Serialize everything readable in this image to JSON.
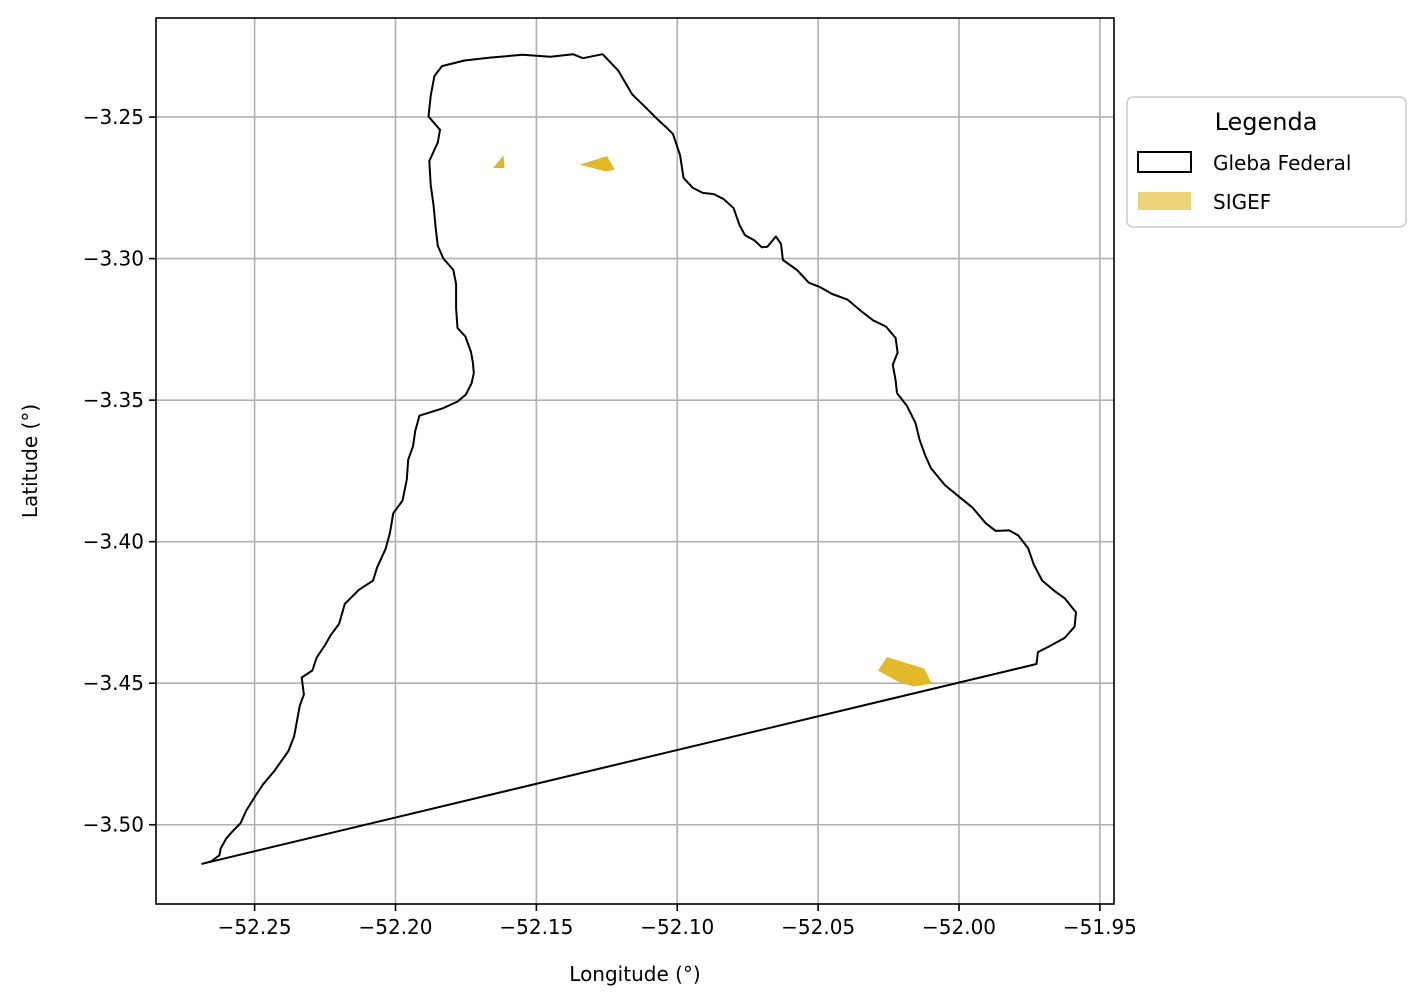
{
  "chart_data": {
    "type": "map",
    "title": "",
    "xlabel": "Longitude (°)",
    "ylabel": "Latitude (°)",
    "xlim": [
      -52.285,
      -51.945
    ],
    "ylim": [
      -3.528,
      -3.215
    ],
    "xticks": [
      -52.25,
      -52.2,
      -52.15,
      -52.1,
      -52.05,
      -52.0,
      -51.95
    ],
    "xtick_labels": [
      "−52.25",
      "−52.20",
      "−52.15",
      "−52.10",
      "−52.05",
      "−52.00",
      "−51.95"
    ],
    "yticks": [
      -3.25,
      -3.3,
      -3.35,
      -3.4,
      -3.45,
      -3.5
    ],
    "ytick_labels": [
      "−3.25",
      "−3.30",
      "−3.35",
      "−3.40",
      "−3.45",
      "−3.50"
    ],
    "grid": true,
    "legend": {
      "title": "Legenda",
      "placement": "outside-right-top",
      "entries": [
        {
          "label": "Gleba Federal",
          "style": "outline",
          "color": "#000000"
        },
        {
          "label": "SIGEF",
          "style": "fill",
          "color": "#dfb520"
        }
      ]
    },
    "series": [
      {
        "name": "Gleba Federal",
        "kind": "polygon-outline",
        "color": "#000000",
        "coords": [
          [
            -52.2686,
            -3.5138
          ],
          [
            -52.2655,
            -3.513
          ],
          [
            -52.2625,
            -3.5108
          ],
          [
            -52.262,
            -3.5083
          ],
          [
            -52.26,
            -3.5048
          ],
          [
            -52.258,
            -3.5025
          ],
          [
            -52.255,
            -3.4995
          ],
          [
            -52.253,
            -3.495
          ],
          [
            -52.2495,
            -3.4895
          ],
          [
            -52.247,
            -3.4857
          ],
          [
            -52.243,
            -3.481
          ],
          [
            -52.238,
            -3.474
          ],
          [
            -52.236,
            -3.4688
          ],
          [
            -52.235,
            -3.4635
          ],
          [
            -52.234,
            -3.458
          ],
          [
            -52.2325,
            -3.454
          ],
          [
            -52.2333,
            -3.448
          ],
          [
            -52.2295,
            -3.4455
          ],
          [
            -52.228,
            -3.441
          ],
          [
            -52.225,
            -3.4365
          ],
          [
            -52.223,
            -3.433
          ],
          [
            -52.22,
            -3.429
          ],
          [
            -52.218,
            -3.422
          ],
          [
            -52.213,
            -3.417
          ],
          [
            -52.208,
            -3.4138
          ],
          [
            -52.2065,
            -3.409
          ],
          [
            -52.2035,
            -3.4025
          ],
          [
            -52.202,
            -3.397
          ],
          [
            -52.2008,
            -3.39
          ],
          [
            -52.1975,
            -3.3855
          ],
          [
            -52.196,
            -3.378
          ],
          [
            -52.1955,
            -3.371
          ],
          [
            -52.1938,
            -3.3663
          ],
          [
            -52.193,
            -3.361
          ],
          [
            -52.1915,
            -3.3555
          ],
          [
            -52.1835,
            -3.353
          ],
          [
            -52.178,
            -3.3505
          ],
          [
            -52.175,
            -3.348
          ],
          [
            -52.173,
            -3.344
          ],
          [
            -52.1722,
            -3.3405
          ],
          [
            -52.1725,
            -3.337
          ],
          [
            -52.1732,
            -3.333
          ],
          [
            -52.1752,
            -3.3275
          ],
          [
            -52.178,
            -3.3245
          ],
          [
            -52.1785,
            -3.3175
          ],
          [
            -52.1785,
            -3.309
          ],
          [
            -52.1795,
            -3.304
          ],
          [
            -52.183,
            -3.3
          ],
          [
            -52.185,
            -3.2955
          ],
          [
            -52.1858,
            -3.2885
          ],
          [
            -52.1865,
            -3.281
          ],
          [
            -52.1875,
            -3.274
          ],
          [
            -52.188,
            -3.2655
          ],
          [
            -52.185,
            -3.259
          ],
          [
            -52.1842,
            -3.2545
          ],
          [
            -52.1883,
            -3.2498
          ],
          [
            -52.1875,
            -3.2425
          ],
          [
            -52.1862,
            -3.2355
          ],
          [
            -52.1835,
            -3.232
          ],
          [
            -52.1755,
            -3.23
          ],
          [
            -52.1665,
            -3.229
          ],
          [
            -52.155,
            -3.228
          ],
          [
            -52.145,
            -3.2287
          ],
          [
            -52.137,
            -3.2278
          ],
          [
            -52.1335,
            -3.2292
          ],
          [
            -52.1265,
            -3.2278
          ],
          [
            -52.121,
            -3.2335
          ],
          [
            -52.116,
            -3.242
          ],
          [
            -52.1118,
            -3.246
          ],
          [
            -52.1068,
            -3.251
          ],
          [
            -52.1035,
            -3.254
          ],
          [
            -52.1015,
            -3.256
          ],
          [
            -52.099,
            -3.2635
          ],
          [
            -52.0978,
            -3.2715
          ],
          [
            -52.0945,
            -3.275
          ],
          [
            -52.091,
            -3.2768
          ],
          [
            -52.087,
            -3.2772
          ],
          [
            -52.0835,
            -3.279
          ],
          [
            -52.08,
            -3.2822
          ],
          [
            -52.078,
            -3.288
          ],
          [
            -52.076,
            -3.2917
          ],
          [
            -52.0727,
            -3.2935
          ],
          [
            -52.07,
            -3.296
          ],
          [
            -52.068,
            -3.2958
          ],
          [
            -52.065,
            -3.2922
          ],
          [
            -52.0632,
            -3.2948
          ],
          [
            -52.0625,
            -3.3005
          ],
          [
            -52.0575,
            -3.304
          ],
          [
            -52.0533,
            -3.3085
          ],
          [
            -52.0495,
            -3.31
          ],
          [
            -52.045,
            -3.3125
          ],
          [
            -52.0395,
            -3.3145
          ],
          [
            -52.0348,
            -3.3185
          ],
          [
            -52.0305,
            -3.3218
          ],
          [
            -52.026,
            -3.324
          ],
          [
            -52.0225,
            -3.328
          ],
          [
            -52.0218,
            -3.3332
          ],
          [
            -52.0235,
            -3.3375
          ],
          [
            -52.0225,
            -3.343
          ],
          [
            -52.022,
            -3.3475
          ],
          [
            -52.0185,
            -3.352
          ],
          [
            -52.0155,
            -3.358
          ],
          [
            -52.014,
            -3.364
          ],
          [
            -52.012,
            -3.3695
          ],
          [
            -52.01,
            -3.374
          ],
          [
            -52.005,
            -3.38
          ],
          [
            -51.9995,
            -3.3845
          ],
          [
            -51.9952,
            -3.388
          ],
          [
            -51.9905,
            -3.3935
          ],
          [
            -51.987,
            -3.3962
          ],
          [
            -51.9822,
            -3.396
          ],
          [
            -51.979,
            -3.3978
          ],
          [
            -51.9755,
            -3.4023
          ],
          [
            -51.9735,
            -3.408
          ],
          [
            -51.9705,
            -3.4137
          ],
          [
            -51.966,
            -3.4175
          ],
          [
            -51.9625,
            -3.42
          ],
          [
            -51.9585,
            -3.425
          ],
          [
            -51.959,
            -3.43
          ],
          [
            -51.9625,
            -3.434
          ],
          [
            -51.968,
            -3.437
          ],
          [
            -51.972,
            -3.439
          ],
          [
            -51.9725,
            -3.4432
          ],
          [
            -52.2686,
            -3.5138
          ]
        ]
      },
      {
        "name": "SIGEF",
        "kind": "polygons-filled",
        "color": "#dfb520",
        "polygons": [
          [
            [
              -52.165,
              -3.2678
            ],
            [
              -52.1618,
              -3.264
            ],
            [
              -52.1615,
              -3.2678
            ]
          ],
          [
            [
              -52.134,
              -3.2668
            ],
            [
              -52.125,
              -3.264
            ],
            [
              -52.1225,
              -3.2685
            ],
            [
              -52.1255,
              -3.269
            ]
          ],
          [
            [
              -52.0285,
              -3.4455
            ],
            [
              -52.0255,
              -3.441
            ],
            [
              -52.0125,
              -3.445
            ],
            [
              -52.01,
              -3.45
            ],
            [
              -52.016,
              -3.451
            ],
            [
              -52.0215,
              -3.4493
            ]
          ]
        ]
      }
    ]
  }
}
